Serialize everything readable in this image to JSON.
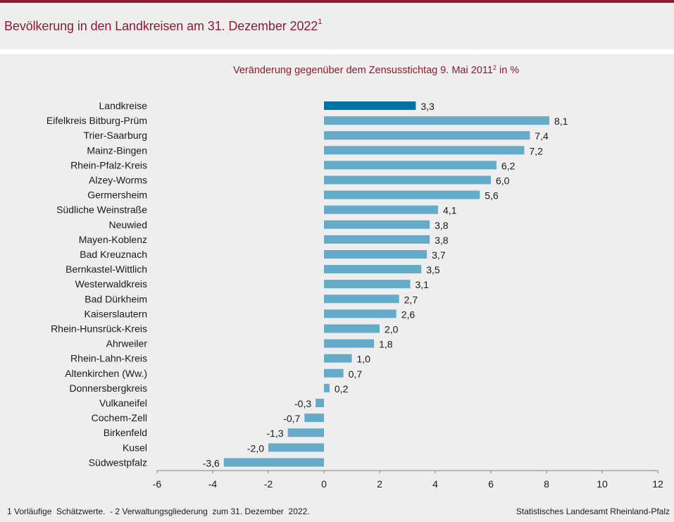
{
  "header": {
    "title": "Bevölkerung in den Landkreisen am 31. Dezember 2022",
    "title_sup": "1"
  },
  "colors": {
    "brand": "#8b1c33",
    "bar_total": "#0072a3",
    "bar": "#64abc9",
    "axis": "#7f7f7f"
  },
  "chart_data": {
    "type": "bar",
    "orientation": "horizontal",
    "title": "Veränderung gegenüber dem Zensusstichtag 9. Mai 2011",
    "title_sup": "2",
    "title_suffix": " in %",
    "xlabel": "",
    "ylabel": "",
    "xlim": [
      -6,
      12
    ],
    "xticks": [
      -6,
      -4,
      -2,
      0,
      2,
      4,
      6,
      8,
      10,
      12
    ],
    "grid": false,
    "legend": "none",
    "categories": [
      "Landkreise",
      "Eifelkreis Bitburg-Prüm",
      "Trier-Saarburg",
      "Mainz-Bingen",
      "Rhein-Pfalz-Kreis",
      "Alzey-Worms",
      "Germersheim",
      "Südliche Weinstraße",
      "Neuwied",
      "Mayen-Koblenz",
      "Bad Kreuznach",
      "Bernkastel-Wittlich",
      "Westerwaldkreis",
      "Bad Dürkheim",
      "Kaiserslautern",
      "Rhein-Hunsrück-Kreis",
      "Ahrweiler",
      "Rhein-Lahn-Kreis",
      "Altenkirchen (Ww.)",
      "Donnersbergkreis",
      "Vulkaneifel",
      "Cochem-Zell",
      "Birkenfeld",
      "Kusel",
      "Südwestpfalz"
    ],
    "values": [
      3.3,
      8.1,
      7.4,
      7.2,
      6.2,
      6.0,
      5.6,
      4.1,
      3.8,
      3.8,
      3.7,
      3.5,
      3.1,
      2.7,
      2.6,
      2.0,
      1.8,
      1.0,
      0.7,
      0.2,
      -0.3,
      -0.7,
      -1.3,
      -2.0,
      -3.6
    ],
    "value_labels": [
      "3,3",
      "8,1",
      "7,4",
      "7,2",
      "6,2",
      "6,0",
      "5,6",
      "4,1",
      "3,8",
      "3,8",
      "3,7",
      "3,5",
      "3,1",
      "2,7",
      "2,6",
      "2,0",
      "1,8",
      "1,0",
      "0,7",
      "0,2",
      "-0,3",
      "-0,7",
      "-1,3",
      "-2,0",
      "-3,6"
    ],
    "highlight_index": 0
  },
  "footer": {
    "footnote": "1 Vorläufige  Schätzwerte.  - 2 Verwaltungsgliederung  zum 31. Dezember  2022.",
    "source": "Statistisches Landesamt  Rheinland-Pfalz"
  }
}
